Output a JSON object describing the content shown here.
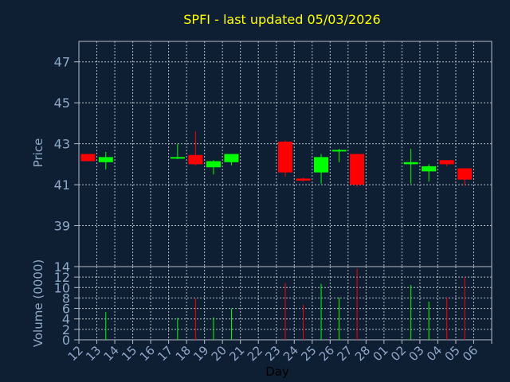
{
  "chart_data": {
    "type": "candlestick",
    "title": "SPFI - last updated 05/03/2026",
    "xlabel": "Day",
    "ylabel_price": "Price",
    "ylabel_volume": "Volume (0000)",
    "categories": [
      "12",
      "13",
      "14",
      "15",
      "16",
      "17",
      "18",
      "19",
      "20",
      "21",
      "22",
      "23",
      "24",
      "25",
      "26",
      "27",
      "28",
      "01",
      "02",
      "03",
      "04",
      "05",
      "06"
    ],
    "price_ticks": [
      39,
      41,
      43,
      45,
      47
    ],
    "price_range": [
      37.0,
      48.0
    ],
    "volume_ticks": [
      0,
      2,
      4,
      6,
      8,
      10,
      12,
      14
    ],
    "volume_range": [
      0,
      14
    ],
    "grid": true,
    "colors": {
      "background": "#0f1f33",
      "up": "#00ff00",
      "down": "#ff0000",
      "title": "#ffff00",
      "axis_label": "#8fa8c8",
      "grid": "#b4bcc8",
      "frame": "#b4bcc8"
    },
    "candles": [
      {
        "day": "12",
        "open": 42.5,
        "high": 42.5,
        "low": 42.15,
        "close": 42.15
      },
      {
        "day": "13",
        "open": 42.1,
        "high": 42.6,
        "low": 41.75,
        "close": 42.35
      },
      {
        "day": "17",
        "open": 42.3,
        "high": 43.0,
        "low": 42.25,
        "close": 42.35
      },
      {
        "day": "18",
        "open": 42.45,
        "high": 43.6,
        "low": 41.95,
        "close": 42.0
      },
      {
        "day": "19",
        "open": 41.85,
        "high": 42.2,
        "low": 41.5,
        "close": 42.15
      },
      {
        "day": "20",
        "open": 42.1,
        "high": 42.5,
        "low": 41.95,
        "close": 42.5
      },
      {
        "day": "23",
        "open": 43.1,
        "high": 43.15,
        "low": 41.4,
        "close": 41.6
      },
      {
        "day": "24",
        "open": 41.3,
        "high": 41.35,
        "low": 41.15,
        "close": 41.2
      },
      {
        "day": "25",
        "open": 41.6,
        "high": 42.5,
        "low": 41.05,
        "close": 42.35
      },
      {
        "day": "26",
        "open": 42.65,
        "high": 42.75,
        "low": 42.1,
        "close": 42.7
      },
      {
        "day": "27",
        "open": 42.5,
        "high": 42.5,
        "low": 40.9,
        "close": 41.0
      },
      {
        "day": "02",
        "open": 42.0,
        "high": 42.75,
        "low": 41.05,
        "close": 42.1
      },
      {
        "day": "03",
        "open": 41.65,
        "high": 42.0,
        "low": 41.15,
        "close": 41.9
      },
      {
        "day": "04",
        "open": 42.2,
        "high": 42.2,
        "low": 41.9,
        "close": 42.0
      },
      {
        "day": "05",
        "open": 41.8,
        "high": 41.8,
        "low": 40.95,
        "close": 41.25
      }
    ],
    "volume": [
      {
        "day": "13",
        "value": 5.3,
        "dir": "up"
      },
      {
        "day": "17",
        "value": 4.2,
        "dir": "up"
      },
      {
        "day": "18",
        "value": 7.9,
        "dir": "down"
      },
      {
        "day": "19",
        "value": 4.3,
        "dir": "up"
      },
      {
        "day": "20",
        "value": 6.0,
        "dir": "up"
      },
      {
        "day": "23",
        "value": 10.9,
        "dir": "down"
      },
      {
        "day": "24",
        "value": 6.7,
        "dir": "down"
      },
      {
        "day": "25",
        "value": 10.7,
        "dir": "up"
      },
      {
        "day": "26",
        "value": 8.1,
        "dir": "up"
      },
      {
        "day": "27",
        "value": 13.6,
        "dir": "down"
      },
      {
        "day": "02",
        "value": 10.5,
        "dir": "up"
      },
      {
        "day": "03",
        "value": 7.3,
        "dir": "up"
      },
      {
        "day": "04",
        "value": 8.1,
        "dir": "down"
      },
      {
        "day": "05",
        "value": 12.0,
        "dir": "down"
      }
    ]
  }
}
